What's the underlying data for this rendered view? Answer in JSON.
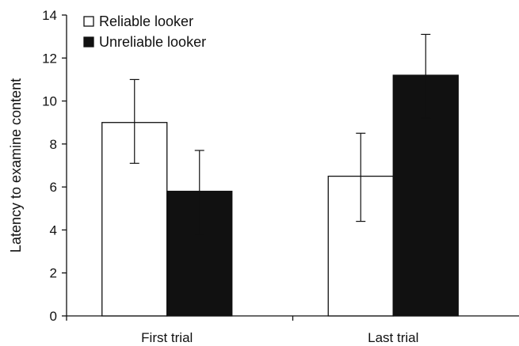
{
  "chart_data": {
    "type": "bar",
    "title": "",
    "xlabel": "",
    "ylabel": "Latency to examine content",
    "ylim": [
      0,
      14
    ],
    "yticks": [
      0,
      2,
      4,
      6,
      8,
      10,
      12,
      14
    ],
    "grid": false,
    "legend_position": "top-left",
    "categories": [
      "First trial",
      "Last trial"
    ],
    "series": [
      {
        "name": "Reliable looker",
        "fill": "#ffffff",
        "values": [
          9.0,
          6.5
        ],
        "error_low": [
          7.1,
          4.4
        ],
        "error_high": [
          11.0,
          8.5
        ]
      },
      {
        "name": "Unreliable looker",
        "fill": "#111111",
        "values": [
          5.8,
          11.2
        ],
        "error_low": [
          3.8,
          9.2
        ],
        "error_high": [
          7.7,
          13.1
        ]
      }
    ]
  }
}
